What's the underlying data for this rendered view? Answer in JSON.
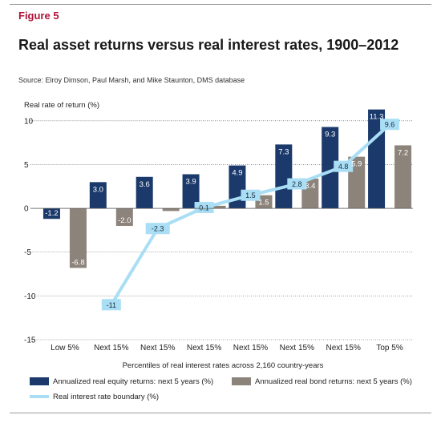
{
  "figure_label": "Figure 5",
  "title": "Real asset returns versus real interest rates, 1900–2012",
  "source": "Source: Elroy Dimson, Paul Marsh, and Mike Staunton, DMS database",
  "chart_data": {
    "type": "bar",
    "categories": [
      "Low 5%",
      "Next 15%",
      "Next 15%",
      "Next 15%",
      "Next 15%",
      "Next 15%",
      "Next 15%",
      "Top 5%"
    ],
    "series": [
      {
        "name": "Annualized real equity returns: next 5 years (%)",
        "type": "bar",
        "color": "#1b3a6b",
        "values": [
          -1.2,
          3.0,
          3.6,
          3.9,
          4.9,
          7.3,
          9.3,
          11.3
        ],
        "labels": [
          "-1.2",
          "3.0",
          "3.6",
          "3.9",
          "4.9",
          "7.3",
          "9.3",
          "11.3"
        ]
      },
      {
        "name": "Annualized real bond returns: next 5 years (%)",
        "type": "bar",
        "color": "#8c837b",
        "values": [
          -6.8,
          -2.0,
          -0.3,
          0.3,
          1.5,
          3.4,
          5.9,
          7.2
        ],
        "labels": [
          "-6.8",
          "-2.0",
          "",
          "",
          "1.5",
          "3.4",
          "5.9",
          "7.2"
        ]
      },
      {
        "name": "Real interest rate boundary (%)",
        "type": "line",
        "color": "#a9def4",
        "values": [
          null,
          -11,
          -2.3,
          0.1,
          1.5,
          2.8,
          4.8,
          9.6
        ],
        "labels": [
          "",
          "-11",
          "-2.3",
          "0.1",
          "1.5",
          "2.8",
          "4.8",
          "9.6"
        ]
      }
    ],
    "ylabel": "Real rate of return (%)",
    "xlabel": "Percentiles of real interest rates across 2,160 country-years",
    "ylim": [
      -15,
      12
    ],
    "yticks": [
      "10",
      "5",
      "0",
      "-5",
      "-10",
      "-15"
    ],
    "legend_position": "bottom"
  }
}
